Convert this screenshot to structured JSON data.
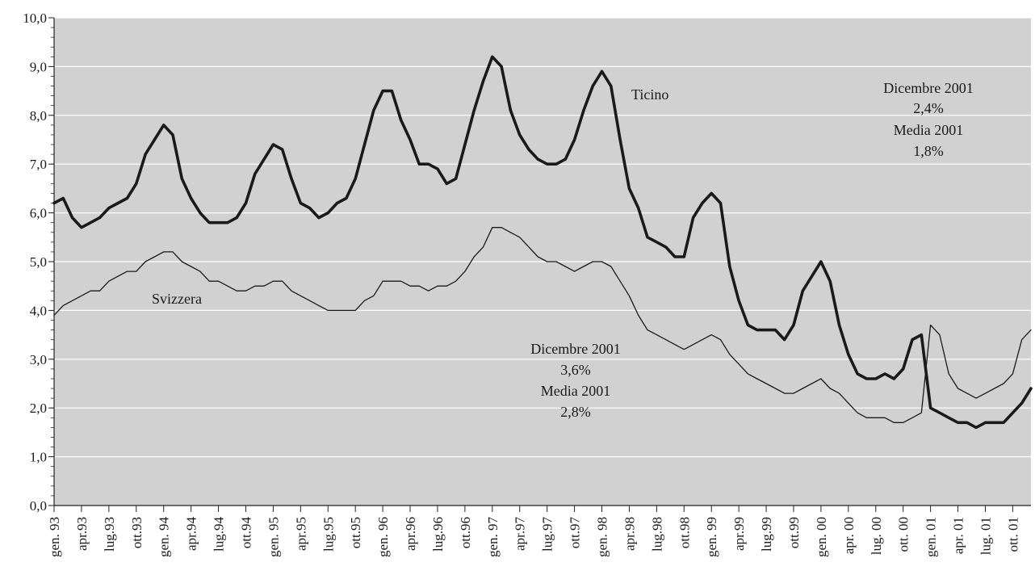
{
  "chart_data": {
    "type": "line",
    "title": "",
    "xlabel": "",
    "ylabel": "",
    "ylim": [
      0,
      10
    ],
    "yticks": [
      "0,0",
      "1,0",
      "2,0",
      "3,0",
      "4,0",
      "5,0",
      "6,0",
      "7,0",
      "8,0",
      "9,0",
      "10,0"
    ],
    "xtick_labels": [
      "gen. 93",
      "apr.93",
      "lug.93",
      "ott.93",
      "gen. 94",
      "apr.94",
      "lug.94",
      "ott.94",
      "gen. 95",
      "apr.95",
      "lug.95",
      "ott.95",
      "gen. 96",
      "apr.96",
      "lug.96",
      "ott.96",
      "gen. 97",
      "apr.97",
      "lug.97",
      "ott.97",
      "gen. 98",
      "apr.98",
      "lug.98",
      "ott.98",
      "gen. 99",
      "apr.99",
      "lug.99",
      "ott.99",
      "gen. 00",
      "apr. 00",
      "lug. 00",
      "ott. 00",
      "gen. 01",
      "apr. 01",
      "lug. 01",
      "ott. 01"
    ],
    "months": 108,
    "grid": true,
    "background": "#d1d1d2",
    "series": [
      {
        "name": "Ticino",
        "style": "bold",
        "values": [
          6.2,
          6.3,
          5.9,
          5.7,
          5.8,
          5.9,
          6.1,
          6.2,
          6.3,
          6.6,
          7.2,
          7.5,
          7.8,
          7.6,
          6.7,
          6.3,
          6.0,
          5.8,
          5.8,
          5.8,
          5.9,
          6.2,
          6.8,
          7.1,
          7.4,
          7.3,
          6.7,
          6.2,
          6.1,
          5.9,
          6.0,
          6.2,
          6.3,
          6.7,
          7.4,
          8.1,
          8.5,
          8.5,
          7.9,
          7.5,
          7.0,
          7.0,
          6.9,
          6.6,
          6.7,
          7.4,
          8.1,
          8.7,
          9.2,
          9.0,
          8.1,
          7.6,
          7.3,
          7.1,
          7.0,
          7.0,
          7.1,
          7.5,
          8.1,
          8.6,
          8.9,
          8.6,
          7.5,
          6.5,
          6.1,
          5.5,
          5.4,
          5.3,
          5.1,
          5.1,
          5.9,
          6.2,
          6.4,
          6.2,
          4.9,
          4.2,
          3.7,
          3.6,
          3.6,
          3.6,
          3.4,
          3.7,
          4.4,
          4.7,
          5.0,
          4.6,
          3.7,
          3.1,
          2.7,
          2.6,
          2.6,
          2.7,
          2.6,
          2.8,
          3.4,
          3.5,
          2.0,
          1.9,
          1.8,
          1.7,
          1.7,
          1.6,
          1.7,
          1.7,
          1.7,
          1.9,
          2.1,
          2.4
        ]
      },
      {
        "name": "Svizzera",
        "style": "thin",
        "values": [
          3.9,
          4.1,
          4.2,
          4.3,
          4.4,
          4.4,
          4.6,
          4.7,
          4.8,
          4.8,
          5.0,
          5.1,
          5.2,
          5.2,
          5.0,
          4.9,
          4.8,
          4.6,
          4.6,
          4.5,
          4.4,
          4.4,
          4.5,
          4.5,
          4.6,
          4.6,
          4.4,
          4.3,
          4.2,
          4.1,
          4.0,
          4.0,
          4.0,
          4.0,
          4.2,
          4.3,
          4.6,
          4.6,
          4.6,
          4.5,
          4.5,
          4.4,
          4.5,
          4.5,
          4.6,
          4.8,
          5.1,
          5.3,
          5.7,
          5.7,
          5.6,
          5.5,
          5.3,
          5.1,
          5.0,
          5.0,
          4.9,
          4.8,
          4.9,
          5.0,
          5.0,
          4.9,
          4.6,
          4.3,
          3.9,
          3.6,
          3.5,
          3.4,
          3.3,
          3.2,
          3.3,
          3.4,
          3.5,
          3.4,
          3.1,
          2.9,
          2.7,
          2.6,
          2.5,
          2.4,
          2.3,
          2.3,
          2.4,
          2.5,
          2.6,
          2.4,
          2.3,
          2.1,
          1.9,
          1.8,
          1.8,
          1.8,
          1.7,
          1.7,
          1.8,
          1.9,
          3.7,
          3.5,
          2.7,
          2.4,
          2.3,
          2.2,
          2.3,
          2.4,
          2.5,
          2.7,
          3.4,
          3.6
        ]
      }
    ],
    "annotations": {
      "ticino_label": "Ticino",
      "svizzera_label": "Svizzera",
      "ticino_box": [
        "Dicembre 2001",
        "2,4%",
        "Media 2001",
        "1,8%"
      ],
      "svizzera_box": [
        "Dicembre 2001",
        "3,6%",
        "Media 2001",
        "2,8%"
      ]
    }
  }
}
